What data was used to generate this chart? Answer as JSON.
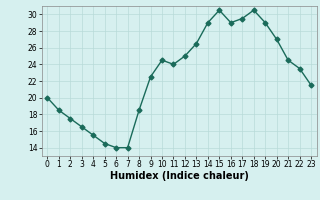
{
  "x": [
    0,
    1,
    2,
    3,
    4,
    5,
    6,
    7,
    8,
    9,
    10,
    11,
    12,
    13,
    14,
    15,
    16,
    17,
    18,
    19,
    20,
    21,
    22,
    23
  ],
  "y": [
    20,
    18.5,
    17.5,
    16.5,
    15.5,
    14.5,
    14,
    14,
    18.5,
    22.5,
    24.5,
    24,
    25,
    26.5,
    29,
    30.5,
    29,
    29.5,
    30.5,
    29,
    27,
    24.5,
    23.5,
    21.5
  ],
  "line_color": "#1a6b5a",
  "marker": "D",
  "marker_size": 2.5,
  "bg_color": "#d6f0ef",
  "grid_color": "#b8dbd9",
  "xlabel": "Humidex (Indice chaleur)",
  "xlim": [
    -0.5,
    23.5
  ],
  "ylim": [
    13,
    31
  ],
  "yticks": [
    14,
    16,
    18,
    20,
    22,
    24,
    26,
    28,
    30
  ],
  "xticks": [
    0,
    1,
    2,
    3,
    4,
    5,
    6,
    7,
    8,
    9,
    10,
    11,
    12,
    13,
    14,
    15,
    16,
    17,
    18,
    19,
    20,
    21,
    22,
    23
  ],
  "tick_fontsize": 5.5,
  "xlabel_fontsize": 7,
  "linewidth": 1.0
}
